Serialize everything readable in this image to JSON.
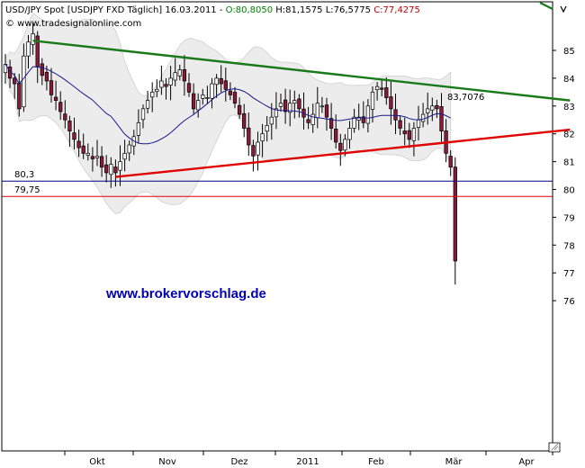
{
  "header": {
    "instrument": "USD/JPY Spot [USDJPY FXD  Täglich]",
    "date": "16.03.2011",
    "sep": "-",
    "open": "O:80,8050",
    "high": "H:81,1575",
    "low": "L:76,5775",
    "close": "C:77,4275",
    "copyright": "© www.tradesignalonline.com"
  },
  "watermark": "www.brokervorschlag.de",
  "colors": {
    "header_open": "#008000",
    "header_close": "#c00000",
    "upper_line": "#1a7a1a",
    "lower_line": "#e00000",
    "support_801": "#000080",
    "support_7975": "#e00000",
    "moving_average": "#1a1a8c",
    "band_fill": "#ececec",
    "candle_up": "#ffffff",
    "candle_down": "#8a1a3a",
    "watermark": "#0000b0"
  },
  "chart_data": {
    "type": "candlestick",
    "y_axis": {
      "ticks": [
        76,
        77,
        78,
        79,
        80,
        81,
        82,
        83,
        84,
        85
      ],
      "range": [
        75.8,
        86.0
      ],
      "side": "right"
    },
    "x_axis": {
      "labels": [
        "Okt",
        "Nov",
        "Dez",
        "2011",
        "Feb",
        "Mär",
        "Apr"
      ]
    },
    "horizontal_levels": [
      {
        "label": "80,3",
        "value": 80.3,
        "color": "#000080"
      },
      {
        "label": "79,75",
        "value": 79.75,
        "color": "#e00000"
      }
    ],
    "trendlines": [
      {
        "name": "resistance",
        "label": "83,7076",
        "color": "#1a7a1a",
        "from": {
          "bar": 6,
          "value": 85.35
        },
        "to": {
          "bar": 123,
          "value": 83.2
        }
      },
      {
        "name": "support",
        "color": "#e00000",
        "from": {
          "bar": 24,
          "value": 80.45
        },
        "to": {
          "bar": 123,
          "value": 82.15
        }
      }
    ],
    "last_bar": {
      "open": 80.805,
      "high": 81.1575,
      "low": 76.5775,
      "close": 77.4275
    },
    "closes": [
      84.5,
      84.0,
      83.8,
      82.9,
      84.8,
      85.3,
      85.6,
      84.4,
      84.1,
      83.9,
      83.4,
      83.2,
      82.8,
      82.5,
      82.1,
      81.8,
      81.5,
      81.3,
      81.3,
      81.1,
      81.2,
      80.8,
      80.6,
      80.9,
      80.6,
      81.0,
      81.3,
      81.6,
      81.9,
      82.4,
      82.9,
      83.2,
      83.5,
      83.6,
      83.9,
      83.7,
      84.0,
      84.2,
      84.3,
      83.9,
      83.5,
      82.9,
      83.2,
      83.4,
      83.3,
      83.8,
      84.0,
      83.8,
      83.6,
      83.4,
      83.1,
      82.7,
      82.2,
      81.6,
      81.2,
      81.7,
      82.0,
      82.3,
      82.6,
      82.9,
      83.1,
      82.8,
      83.1,
      83.2,
      82.9,
      82.6,
      82.4,
      82.7,
      83.1,
      83.0,
      82.6,
      82.2,
      81.7,
      81.4,
      81.8,
      82.2,
      82.6,
      82.6,
      82.4,
      83.0,
      83.5,
      83.7,
      83.6,
      83.3,
      82.9,
      82.5,
      82.2,
      82.0,
      81.8,
      82.2,
      82.5,
      82.7,
      82.9,
      83.0,
      82.9,
      82.1,
      81.3,
      80.8,
      77.43
    ]
  }
}
